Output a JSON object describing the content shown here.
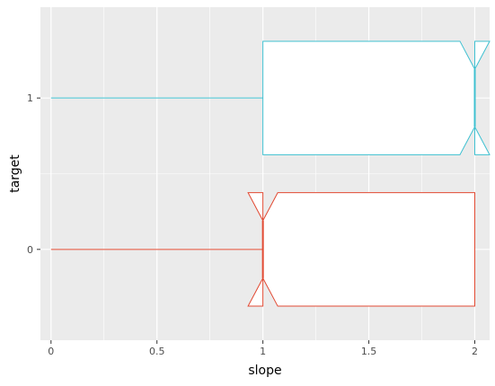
{
  "chart_data": {
    "type": "boxplot",
    "orientation": "horizontal",
    "notched": true,
    "xlabel": "slope",
    "ylabel": "target",
    "xlim": [
      -0.05,
      2.07
    ],
    "ylim": [
      -0.6,
      1.6
    ],
    "x_ticks": [
      0,
      0.5,
      1,
      1.5,
      2
    ],
    "x_tick_labels": [
      "0",
      "0.5",
      "1",
      "1.5",
      "2"
    ],
    "y_ticks": [
      0,
      1
    ],
    "y_tick_labels": [
      "0",
      "1"
    ],
    "grid": true,
    "legend": "none",
    "series": [
      {
        "category": "0",
        "y": 0,
        "color": "#e24a33",
        "min": 0,
        "q1": 1,
        "median": 1,
        "q3": 2,
        "max": 2,
        "notch_low": 0.93,
        "notch_high": 1.07
      },
      {
        "category": "1",
        "y": 1,
        "color": "#3fc1d1",
        "min": 0,
        "q1": 1,
        "median": 2,
        "q3": 2,
        "max": 2,
        "notch_low": 1.93,
        "notch_high": 2.07
      }
    ]
  }
}
